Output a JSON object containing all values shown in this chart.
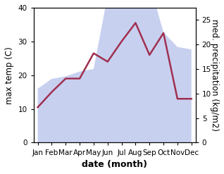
{
  "months": [
    "Jan",
    "Feb",
    "Mar",
    "Apr",
    "May",
    "Jun",
    "Jul",
    "Aug",
    "Sep",
    "Oct",
    "Nov",
    "Dec"
  ],
  "temp": [
    10.5,
    15.0,
    19.0,
    19.0,
    26.5,
    24.0,
    30.0,
    35.5,
    26.0,
    32.5,
    13.0,
    13.0
  ],
  "precip": [
    11.0,
    13.0,
    13.5,
    14.5,
    15.0,
    30.0,
    38.5,
    34.0,
    32.5,
    22.5,
    19.5,
    19.0
  ],
  "temp_color": "#a03050",
  "precip_fill_color": "#c8d0f0",
  "temp_ylim": [
    0,
    40
  ],
  "precip_ylim": [
    0,
    27.5
  ],
  "xlabel": "date (month)",
  "ylabel_left": "max temp (C)",
  "ylabel_right": "med. precipitation (kg/m2)",
  "bg_color": "#ffffff",
  "temp_linewidth": 1.8,
  "xlabel_fontsize": 9,
  "ylabel_fontsize": 8.5,
  "tick_fontsize": 7.5
}
